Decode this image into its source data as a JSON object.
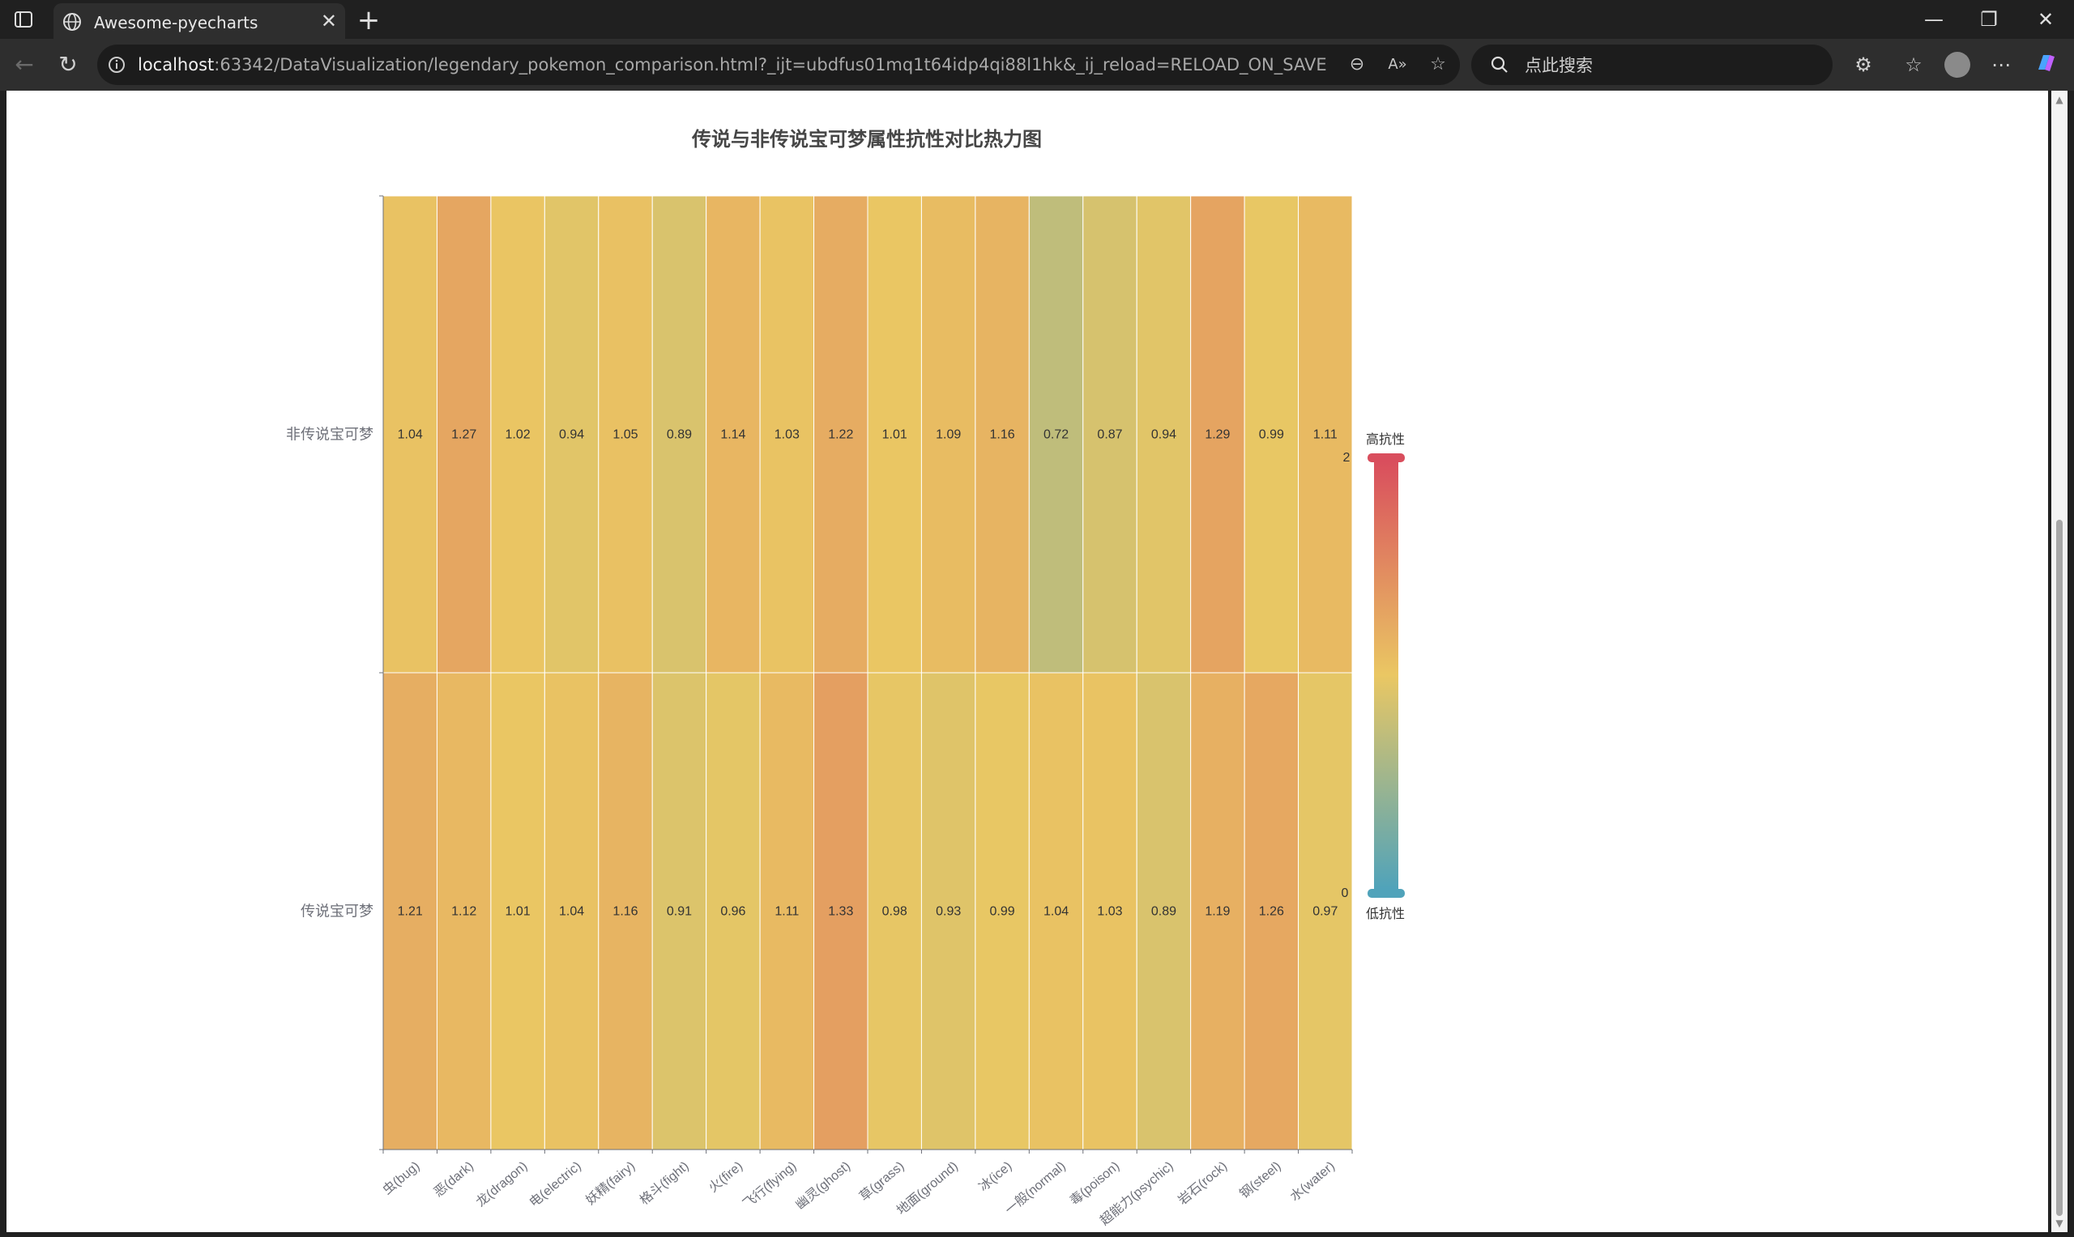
{
  "browser": {
    "tab_title": "Awesome-pyecharts",
    "url_host": "localhost",
    "url_rest": ":63342/DataVisualization/legendary_pokemon_comparison.html?_ijt=ubdfus01mq1t64idp4qi88l1hk&_ij_reload=RELOAD_ON_SAVE",
    "search_placeholder": "点此搜索"
  },
  "chart_data": {
    "type": "heatmap",
    "title": "传说与非传说宝可梦属性抗性对比热力图",
    "x_categories": [
      "虫(bug)",
      "恶(dark)",
      "龙(dragon)",
      "电(electric)",
      "妖精(fairy)",
      "格斗(fight)",
      "火(fire)",
      "飞行(flying)",
      "幽灵(ghost)",
      "草(grass)",
      "地面(ground)",
      "冰(ice)",
      "一般(normal)",
      "毒(poison)",
      "超能力(psychic)",
      "岩石(rock)",
      "钢(steel)",
      "水(water)"
    ],
    "y_categories": [
      "传说宝可梦",
      "非传说宝可梦"
    ],
    "series": [
      {
        "row": "非传说宝可梦",
        "values": [
          1.04,
          1.27,
          1.02,
          0.94,
          1.05,
          0.89,
          1.14,
          1.03,
          1.22,
          1.01,
          1.09,
          1.16,
          0.72,
          0.87,
          0.94,
          1.29,
          0.99,
          1.11
        ]
      },
      {
        "row": "传说宝可梦",
        "values": [
          1.21,
          1.12,
          1.01,
          1.04,
          1.16,
          0.91,
          0.96,
          1.11,
          1.33,
          0.98,
          0.93,
          0.99,
          1.04,
          1.03,
          0.89,
          1.19,
          1.26,
          0.97
        ]
      }
    ],
    "visual_map": {
      "min": 0,
      "max": 2,
      "min_label": "0",
      "max_label": "2",
      "text_high": "高抗性",
      "text_low": "低抗性",
      "colors": [
        "#50a3ba",
        "#eac763",
        "#d94e5d"
      ]
    }
  }
}
